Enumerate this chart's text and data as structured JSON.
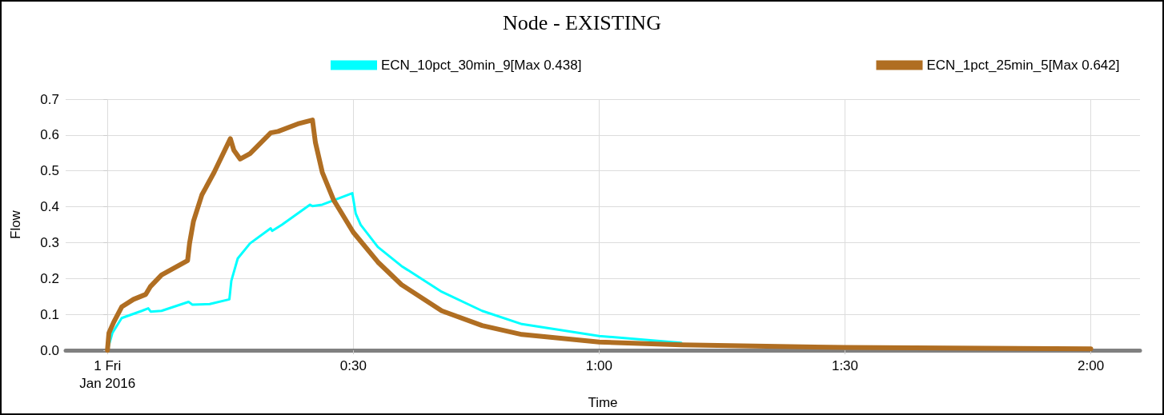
{
  "chart_data": {
    "type": "line",
    "title": "Node - EXISTING",
    "xlabel": "Time",
    "ylabel": "Flow",
    "xlim": [
      -0.085,
      2.1
    ],
    "xticks": [
      {
        "value": 0,
        "label": "1 Fri\nJan 2016"
      },
      {
        "value": 0.5,
        "label": "0:30"
      },
      {
        "value": 1,
        "label": "1:00"
      },
      {
        "value": 1.5,
        "label": "1:30"
      },
      {
        "value": 2,
        "label": "2:00"
      }
    ],
    "ylim": [
      0,
      0.7
    ],
    "yticks": [
      {
        "value": 0,
        "label": "0.0"
      },
      0.1,
      0.2,
      0.3,
      0.4,
      0.5,
      0.6,
      0.7
    ],
    "grid": true,
    "legend": "top",
    "series": [
      {
        "name": "ECN_10pct_30min_9[Max 0.438]",
        "color": "#00ffff",
        "x": [
          0,
          0.01,
          0.029,
          0.07,
          0.083,
          0.088,
          0.11,
          0.165,
          0.173,
          0.208,
          0.248,
          0.252,
          0.265,
          0.29,
          0.332,
          0.335,
          0.355,
          0.412,
          0.417,
          0.437,
          0.498,
          0.505,
          0.515,
          0.55,
          0.598,
          0.68,
          0.762,
          0.843,
          1,
          1.167
        ],
        "values": [
          0,
          0.048,
          0.09,
          0.11,
          0.117,
          0.108,
          0.11,
          0.135,
          0.127,
          0.129,
          0.142,
          0.194,
          0.256,
          0.298,
          0.34,
          0.333,
          0.35,
          0.406,
          0.402,
          0.406,
          0.438,
          0.381,
          0.35,
          0.288,
          0.235,
          0.163,
          0.11,
          0.073,
          0.04,
          0.021
        ]
      },
      {
        "name": "ECN_1pct_25min_5[Max 0.642]",
        "color": "#b06e22",
        "x": [
          0,
          0.003,
          0.013,
          0.029,
          0.053,
          0.078,
          0.087,
          0.11,
          0.163,
          0.167,
          0.175,
          0.192,
          0.217,
          0.25,
          0.257,
          0.27,
          0.29,
          0.332,
          0.347,
          0.387,
          0.417,
          0.423,
          0.437,
          0.46,
          0.5,
          0.55,
          0.598,
          0.68,
          0.762,
          0.843,
          1,
          1.167,
          1.5,
          2
        ],
        "values": [
          0,
          0.048,
          0.079,
          0.121,
          0.142,
          0.156,
          0.177,
          0.21,
          0.25,
          0.298,
          0.36,
          0.433,
          0.496,
          0.59,
          0.558,
          0.533,
          0.548,
          0.606,
          0.61,
          0.631,
          0.642,
          0.579,
          0.496,
          0.419,
          0.329,
          0.246,
          0.183,
          0.11,
          0.069,
          0.044,
          0.023,
          0.015,
          0.008,
          0.004
        ]
      }
    ]
  }
}
